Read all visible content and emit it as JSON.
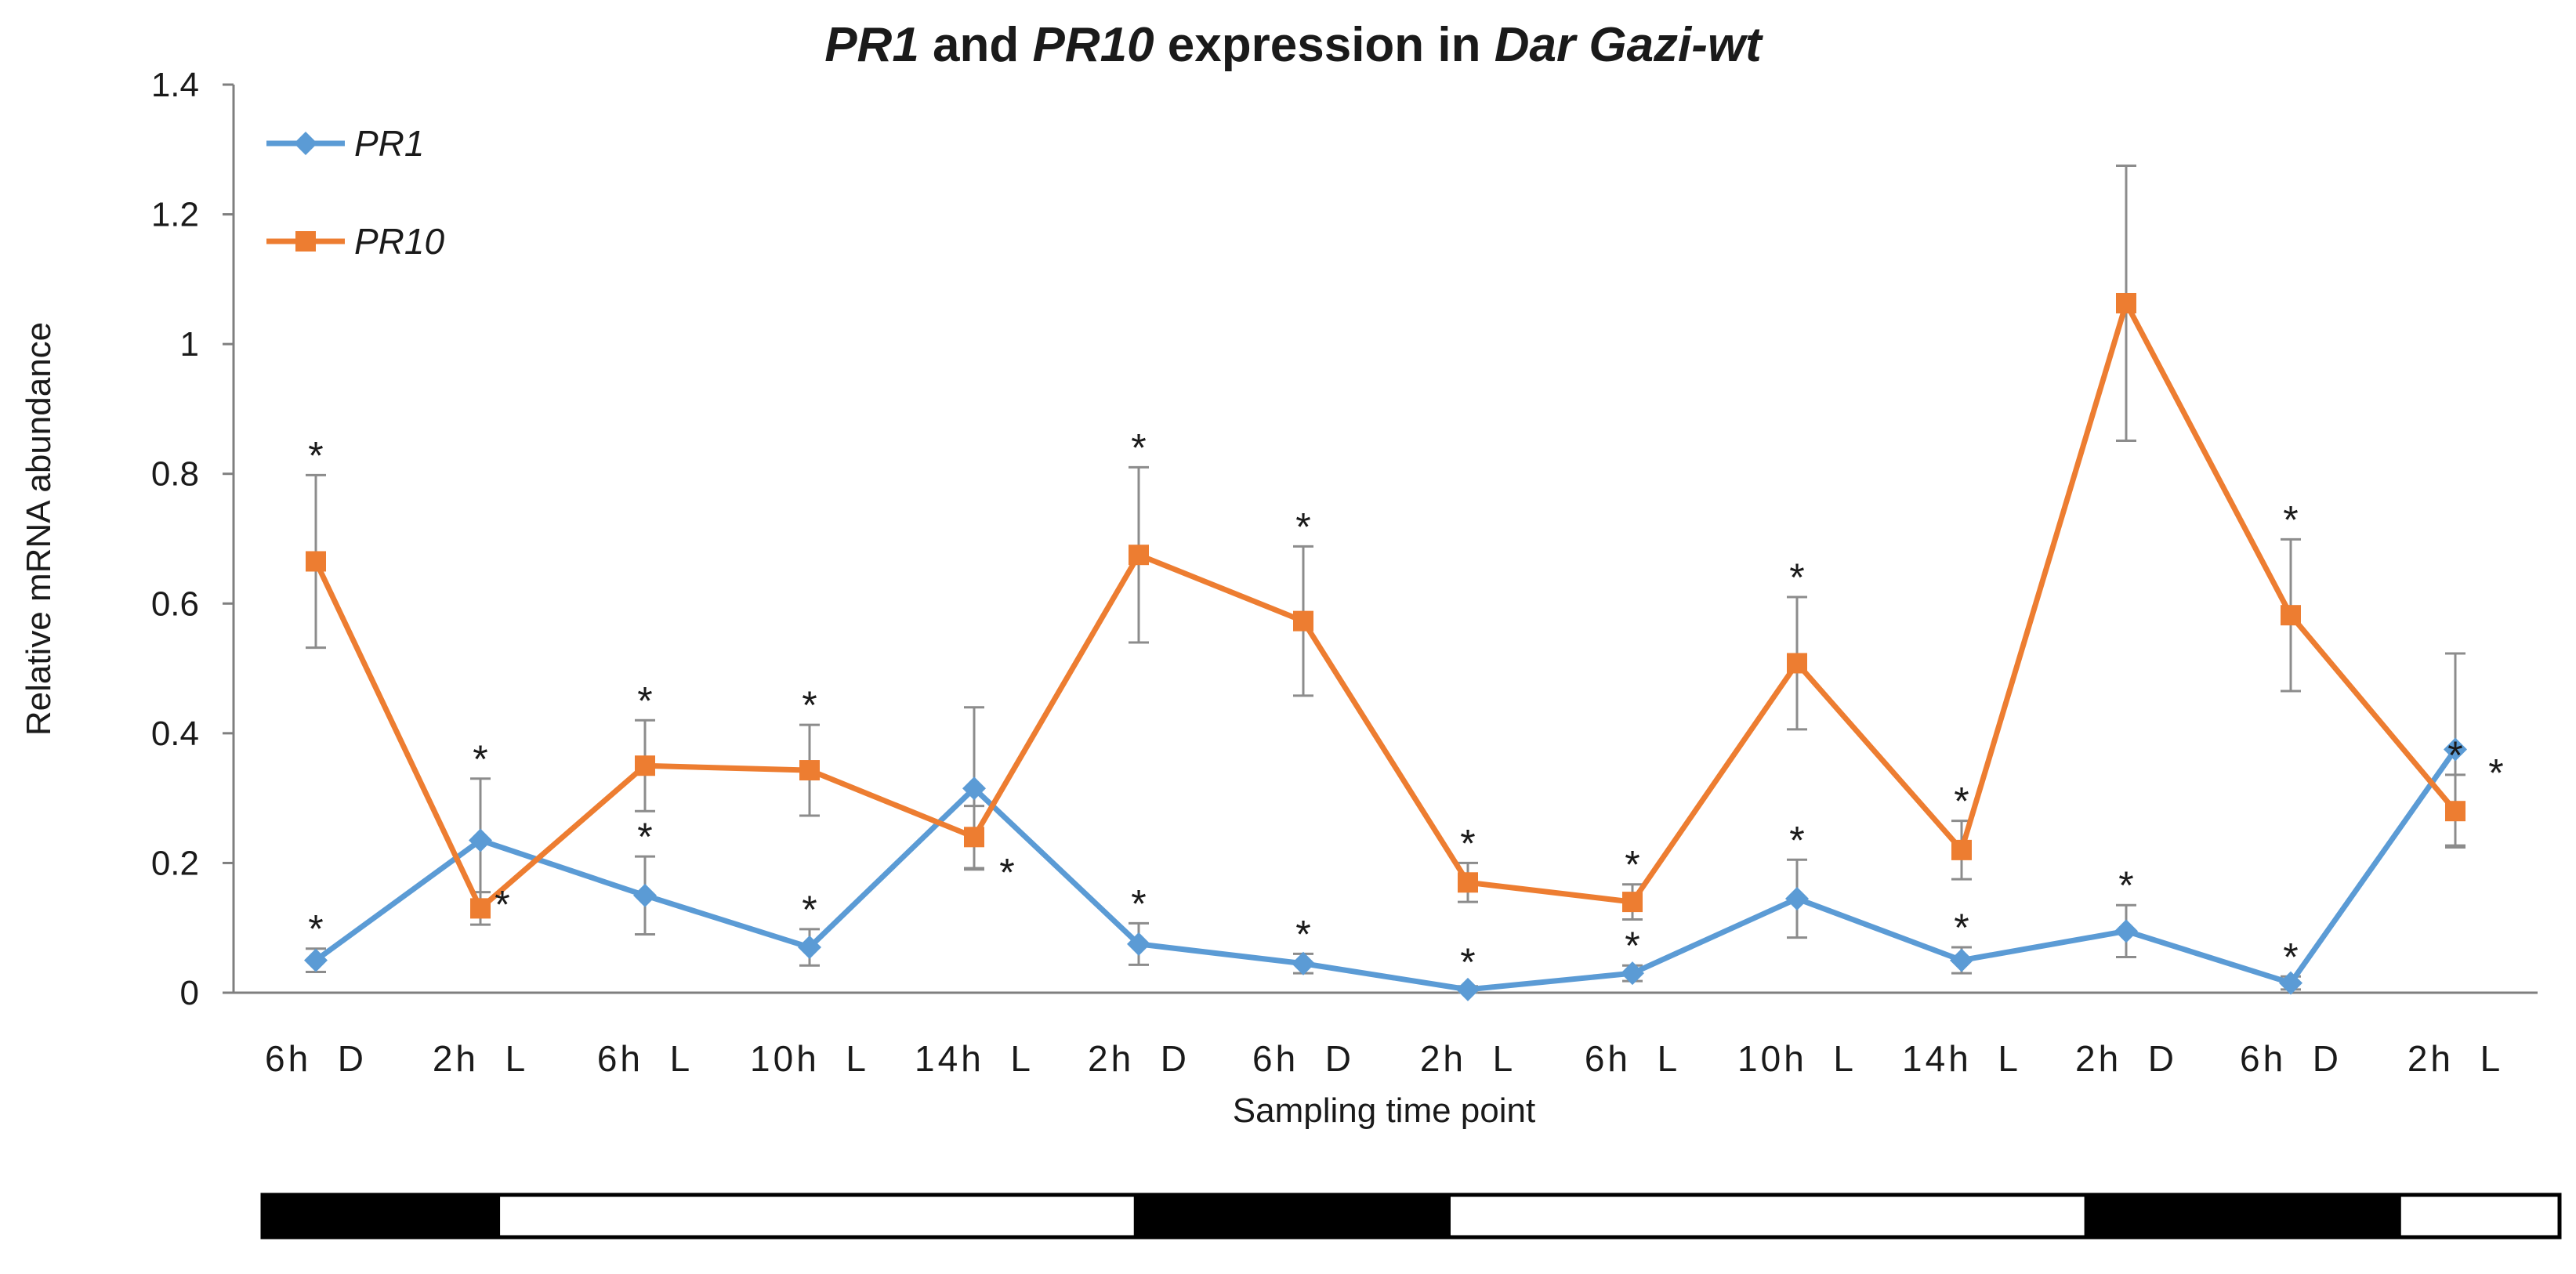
{
  "chart_data": {
    "type": "line",
    "title": {
      "parts": [
        {
          "text": "PR1",
          "italic": true
        },
        {
          "text": " and ",
          "italic": false
        },
        {
          "text": "PR10",
          "italic": true
        },
        {
          "text": " expression in ",
          "italic": false
        },
        {
          "text": "Dar Gazi-wt",
          "italic": true
        }
      ]
    },
    "xlabel": "Sampling time point",
    "ylabel": "Relative mRNA abundance",
    "ylim": [
      0,
      1.4
    ],
    "yticks": [
      "0",
      "0.2",
      "0.4",
      "0.6",
      "0.8",
      "1",
      "1.2",
      "1.4"
    ],
    "yticks_values": [
      0,
      0.2,
      0.4,
      0.6,
      0.8,
      1.0,
      1.2,
      1.4
    ],
    "categories": [
      "6h  D",
      "2h  L",
      "6h  L",
      "10h  L",
      "14h  L",
      "2h  D",
      "6h  D",
      "2h  L",
      "6h  L",
      "10h  L",
      "14h  L",
      "2h  D",
      "6h  D",
      "2h  L"
    ],
    "series": [
      {
        "name": "PR1",
        "color": "#5B9BD5",
        "marker": "diamond",
        "values": [
          0.05,
          0.235,
          0.15,
          0.07,
          0.315,
          0.075,
          0.045,
          0.005,
          0.03,
          0.145,
          0.05,
          0.095,
          0.015,
          0.375
        ],
        "errors": [
          0.018,
          0.095,
          0.06,
          0.028,
          0.125,
          0.032,
          0.015,
          0.005,
          0.012,
          0.06,
          0.02,
          0.04,
          0.01,
          0.148
        ],
        "significance": [
          "*",
          "*",
          "*",
          "*",
          "",
          "*",
          "*",
          "*",
          "*",
          "*",
          "*",
          "*",
          "*",
          "*"
        ]
      },
      {
        "name": "PR10",
        "color": "#ED7D31",
        "marker": "square",
        "values": [
          0.665,
          0.13,
          0.35,
          0.343,
          0.24,
          0.675,
          0.573,
          0.17,
          0.14,
          0.508,
          0.22,
          1.063,
          0.582,
          0.28
        ],
        "errors": [
          0.133,
          0.025,
          0.07,
          0.07,
          0.048,
          0.135,
          0.115,
          0.03,
          0.027,
          0.102,
          0.045,
          0.212,
          0.117,
          0.056
        ],
        "significance": [
          "*",
          "*",
          "*",
          "*",
          "*",
          "*",
          "*",
          "*",
          "*",
          "*",
          "*",
          "",
          "*",
          "*"
        ]
      }
    ],
    "legend": {
      "position": "top-left",
      "entries": [
        "PR1",
        "PR10"
      ]
    },
    "photoperiod_bar": [
      {
        "state": "dark",
        "span": 1.5
      },
      {
        "state": "light",
        "span": 4
      },
      {
        "state": "dark",
        "span": 2
      },
      {
        "state": "light",
        "span": 4
      },
      {
        "state": "dark",
        "span": 2
      },
      {
        "state": "light",
        "span": 1
      }
    ],
    "colors": {
      "axis": "#7f7f7f",
      "error_bar": "#8c8c8c",
      "text": "#1a1a1a",
      "dark_period": "#000000",
      "light_period": "#ffffff"
    }
  }
}
